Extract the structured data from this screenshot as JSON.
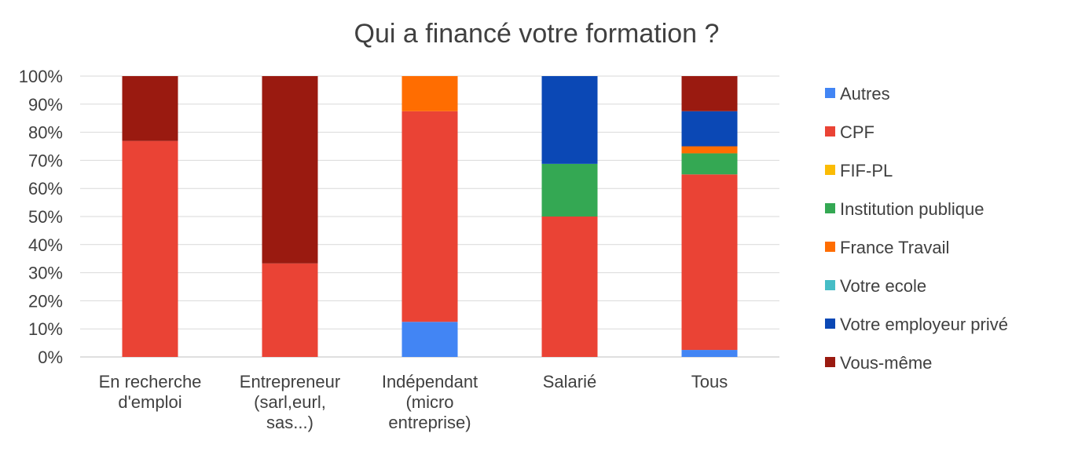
{
  "chart_data": {
    "type": "bar",
    "stacked": true,
    "title": "Qui a financé votre formation ?",
    "xlabel": "",
    "ylabel": "",
    "ylim": [
      0,
      100
    ],
    "y_ticks": [
      "0%",
      "10%",
      "20%",
      "30%",
      "40%",
      "50%",
      "60%",
      "70%",
      "80%",
      "90%",
      "100%"
    ],
    "grid": true,
    "legend_position": "right",
    "categories": [
      [
        "En recherche",
        "d'emploi"
      ],
      [
        "Entrepreneur",
        "(sarl,eurl,",
        "sas...)"
      ],
      [
        "Indépendant",
        "(micro",
        "entreprise)"
      ],
      [
        "Salarié"
      ],
      [
        "Tous"
      ]
    ],
    "series": [
      {
        "name": "Autres",
        "color": "#4285f4",
        "values": [
          0,
          0,
          12.5,
          0,
          2.5
        ]
      },
      {
        "name": "CPF",
        "color": "#ea4335",
        "values": [
          76.9,
          33.3,
          75,
          50,
          62.5
        ]
      },
      {
        "name": "FIF-PL",
        "color": "#fbbc04",
        "values": [
          0,
          0,
          0,
          0,
          0
        ]
      },
      {
        "name": "Institution publique",
        "color": "#34a853",
        "values": [
          0,
          0,
          0,
          18.75,
          7.5
        ]
      },
      {
        "name": "France Travail",
        "color": "#ff6d01",
        "values": [
          0,
          0,
          12.5,
          0,
          2.5
        ]
      },
      {
        "name": "Votre ecole",
        "color": "#46bdc6",
        "values": [
          0,
          0,
          0,
          0,
          0
        ]
      },
      {
        "name": "Votre employeur privé",
        "color": "#0b48b5",
        "values": [
          0,
          0,
          0,
          31.25,
          12.5
        ]
      },
      {
        "name": "Vous-même",
        "color": "#9a1a10",
        "values": [
          23.1,
          66.7,
          0,
          0,
          12.5
        ]
      }
    ]
  }
}
